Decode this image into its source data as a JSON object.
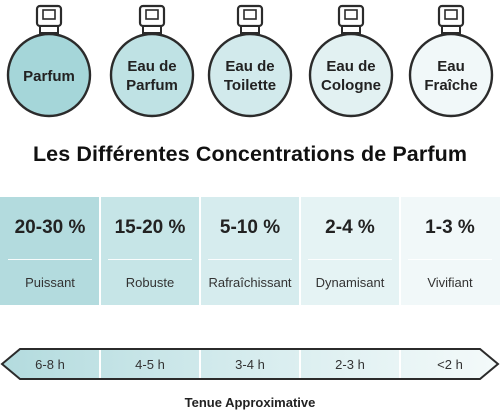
{
  "bottles": [
    {
      "label": "Parfum",
      "color": "#a5d6d9"
    },
    {
      "label": "Eau de\nParfum",
      "color": "#bfe2e4"
    },
    {
      "label": "Eau de\nToilette",
      "color": "#d2eaec"
    },
    {
      "label": "Eau de\nCologne",
      "color": "#e2f1f2"
    },
    {
      "label": "Eau\nFraîche",
      "color": "#f1f8f9"
    }
  ],
  "title": "Les Différentes Concentrations de Parfum",
  "concentrations": [
    {
      "percent": "20-30 %",
      "effect": "Puissant",
      "color": "#b3dbde"
    },
    {
      "percent": "15-20 %",
      "effect": "Robuste",
      "color": "#c6e5e7"
    },
    {
      "percent": "5-10 %",
      "effect": "Rafraîchissant",
      "color": "#d6ecee"
    },
    {
      "percent": "2-4 %",
      "effect": "Dynamisant",
      "color": "#e5f3f4"
    },
    {
      "percent": "1-3 %",
      "effect": "Vivifiant",
      "color": "#f1f8f9"
    }
  ],
  "durations": [
    "6-8 h",
    "4-5 h",
    "3-4 h",
    "2-3 h",
    "<2 h"
  ],
  "duration_caption": "Tenue Approximative"
}
